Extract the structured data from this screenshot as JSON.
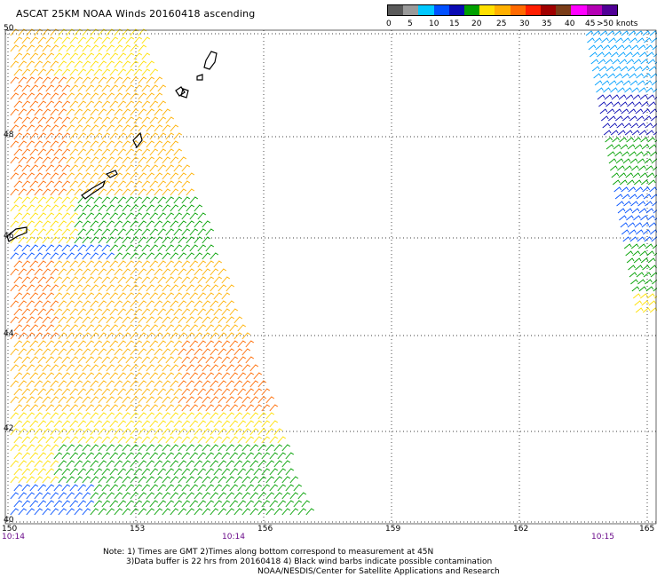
{
  "title": "ASCAT 25KM NOAA Winds 20160418 ascending",
  "scale": {
    "colors": [
      "#5a5a5a",
      "#9a9a9a",
      "#00c8ff",
      "#0050ff",
      "#0a0ab4",
      "#00a000",
      "#ffe000",
      "#ffb000",
      "#ff6a00",
      "#ff1e00",
      "#a00000",
      "#7a3c18",
      "#ff00ff",
      "#b400b4",
      "#500096"
    ],
    "labels": [
      "0",
      "5",
      "10",
      "15",
      "20",
      "25",
      "30",
      "35",
      "40",
      "45",
      ">50 knots"
    ]
  },
  "y_axis": [
    "50",
    "48",
    "46",
    "44",
    "42",
    "40"
  ],
  "x_axis": [
    "150",
    "153",
    "156",
    "159",
    "162",
    "165"
  ],
  "times": [
    "10:14",
    "10:14",
    "10:15"
  ],
  "notes": [
    "Note: 1) Times are GMT 2)Times along bottom correspond to measurement at 45N",
    "3)Data buffer is 22 hrs from 20160418 4) Black wind barbs indicate possible contamination",
    "NOAA/NESDIS/Center for Satellite Applications and Research"
  ]
}
